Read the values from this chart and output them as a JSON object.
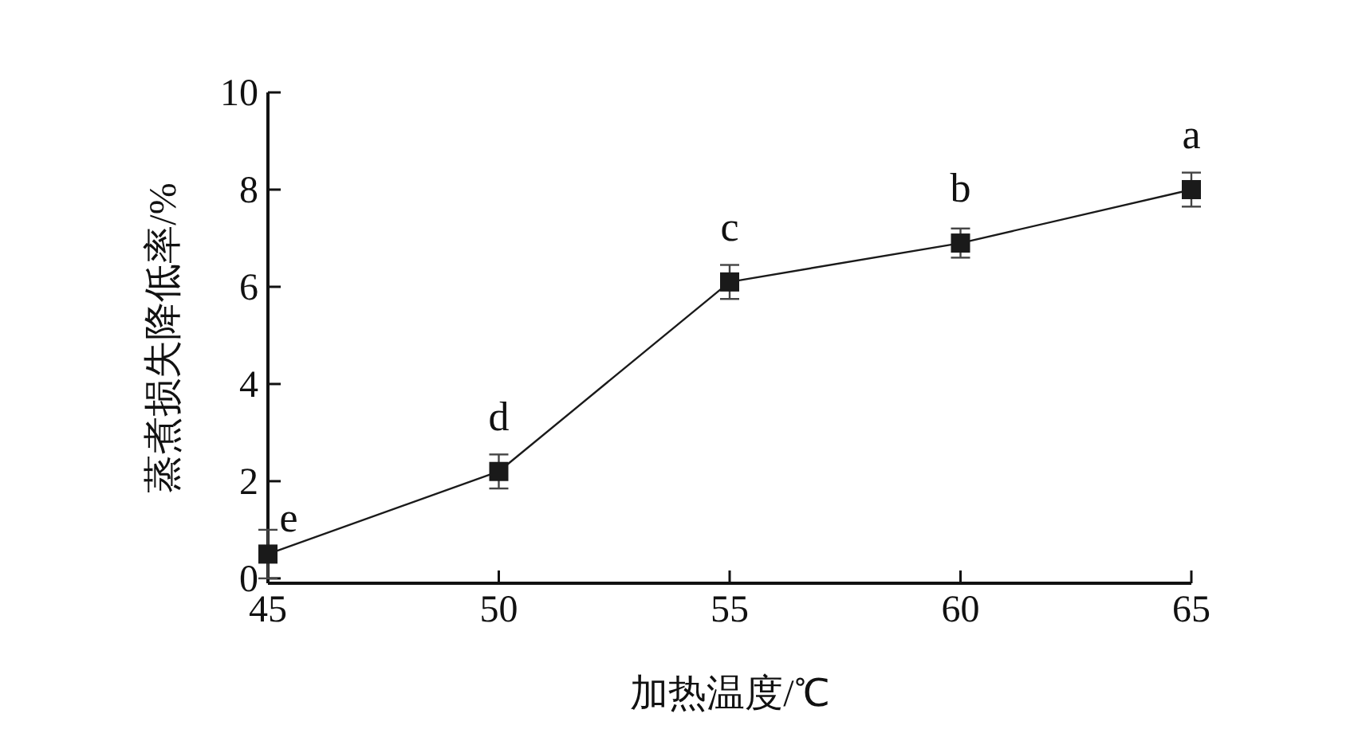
{
  "chart_data": {
    "type": "line",
    "xlabel": "加热温度/℃",
    "ylabel": "蒸煮损失降低率/%",
    "x": [
      45,
      50,
      55,
      60,
      65
    ],
    "series": [
      {
        "color": "#1a1a1a",
        "values": [
          0.5,
          2.2,
          6.1,
          6.9,
          8.0
        ],
        "errors": [
          0.5,
          0.35,
          0.35,
          0.3,
          0.35
        ]
      }
    ],
    "marker": "square",
    "line_style": "solid",
    "xlim": [
      45,
      65
    ],
    "xticks": [
      45,
      50,
      55,
      60,
      65
    ],
    "ylim": [
      -0.1,
      10
    ],
    "yticks": [
      0,
      2,
      4,
      6,
      8,
      10
    ],
    "annotations": [
      {
        "text": "e",
        "x": 45,
        "y": 0.5
      },
      {
        "text": "d",
        "x": 50,
        "y": 2.2
      },
      {
        "text": "c",
        "x": 55,
        "y": 6.1
      },
      {
        "text": "b",
        "x": 60,
        "y": 6.9
      },
      {
        "text": "a",
        "x": 65,
        "y": 8.0
      }
    ]
  }
}
